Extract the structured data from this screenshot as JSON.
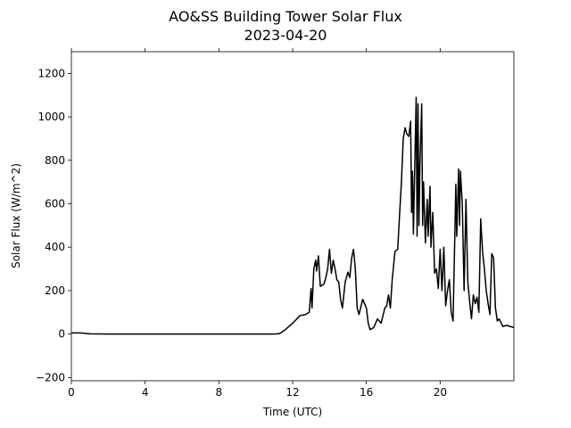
{
  "chart_data": {
    "type": "line",
    "title": "AO&SS Building Tower Solar Flux",
    "subtitle": "2023-04-20",
    "xlabel": "Time (UTC)",
    "ylabel": "Solar Flux (W/m^2)",
    "color": "#000000",
    "x": [
      0,
      0.5,
      1,
      2,
      3,
      4,
      5,
      6,
      7,
      8,
      9,
      10,
      11,
      11.3,
      11.6,
      12,
      12.4,
      12.7,
      12.9,
      13,
      13.05,
      13.15,
      13.25,
      13.3,
      13.4,
      13.5,
      13.7,
      13.8,
      13.9,
      14,
      14.1,
      14.2,
      14.3,
      14.4,
      14.5,
      14.6,
      14.7,
      14.85,
      15,
      15.1,
      15.2,
      15.3,
      15.4,
      15.5,
      15.6,
      15.8,
      16,
      16.1,
      16.2,
      16.4,
      16.6,
      16.8,
      17,
      17.1,
      17.2,
      17.3,
      17.4,
      17.55,
      17.7,
      17.8,
      17.9,
      18,
      18.1,
      18.2,
      18.3,
      18.4,
      18.45,
      18.5,
      18.55,
      18.6,
      18.7,
      18.75,
      18.8,
      18.85,
      18.9,
      19,
      19.05,
      19.1,
      19.2,
      19.3,
      19.35,
      19.45,
      19.5,
      19.6,
      19.7,
      19.8,
      19.9,
      20,
      20.1,
      20.2,
      20.3,
      20.4,
      20.5,
      20.6,
      20.7,
      20.8,
      20.85,
      20.9,
      21,
      21.05,
      21.1,
      21.2,
      21.3,
      21.4,
      21.5,
      21.6,
      21.7,
      21.8,
      21.9,
      22,
      22.1,
      22.2,
      22.3,
      22.4,
      22.5,
      22.6,
      22.7,
      22.8,
      22.9,
      23,
      23.1,
      23.2,
      23.4,
      23.6,
      23.8,
      24
    ],
    "values": [
      5,
      5,
      1,
      0,
      0,
      0,
      0,
      0,
      0,
      0,
      0,
      0,
      0,
      2,
      20,
      50,
      85,
      90,
      100,
      210,
      120,
      300,
      340,
      290,
      360,
      220,
      230,
      260,
      300,
      390,
      280,
      340,
      300,
      250,
      240,
      160,
      120,
      240,
      285,
      260,
      350,
      390,
      300,
      120,
      90,
      160,
      120,
      50,
      20,
      30,
      70,
      50,
      120,
      130,
      180,
      120,
      250,
      380,
      390,
      550,
      700,
      900,
      950,
      920,
      910,
      980,
      560,
      750,
      460,
      680,
      1090,
      450,
      1060,
      500,
      770,
      1060,
      500,
      700,
      420,
      620,
      450,
      680,
      400,
      560,
      280,
      300,
      210,
      390,
      200,
      400,
      130,
      200,
      250,
      100,
      60,
      470,
      690,
      450,
      760,
      500,
      750,
      600,
      200,
      620,
      240,
      150,
      70,
      180,
      140,
      170,
      100,
      530,
      380,
      300,
      200,
      140,
      90,
      370,
      350,
      120,
      60,
      70,
      35,
      40,
      35,
      30
    ],
    "xlim": [
      0,
      24
    ],
    "xticks": [
      0,
      4,
      8,
      12,
      16,
      20
    ],
    "ylim": [
      -215,
      1300
    ],
    "yticks": [
      {
        "value": -200,
        "label": "−200"
      },
      0,
      200,
      400,
      600,
      800,
      1000,
      1200
    ]
  }
}
